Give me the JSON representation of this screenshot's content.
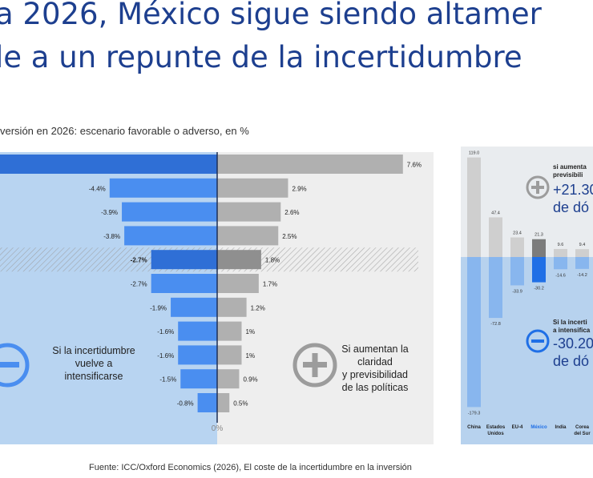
{
  "header": {
    "title_line1": "a 2026, México sigue siendo altamer",
    "title_line2": "le a un repunte de la incertidumbre",
    "subtitle": "versión en 2026: escenario favorable o adverso, en %"
  },
  "colors": {
    "adverse_bar": "#4a8ef0",
    "favorable_bar": "#b0b0b0",
    "left_panel": "#b8d4f1",
    "right_panel": "#eeeeee",
    "title": "#1d3f8f"
  },
  "chart_data": [
    {
      "type": "bar",
      "orientation": "horizontal-diverging",
      "series": [
        {
          "name": "Si la incertidumbre vuelve a intensificarse",
          "values": [
            null,
            -4.4,
            -3.9,
            -3.8,
            -2.7,
            -2.7,
            -1.9,
            -1.6,
            -1.6,
            -1.5,
            -0.8
          ]
        },
        {
          "name": "Si aumentan la claridad y previsibilidad de las políticas",
          "values": [
            7.6,
            2.9,
            2.6,
            2.5,
            1.8,
            1.7,
            1.2,
            1,
            1,
            0.9,
            0.5
          ]
        }
      ],
      "neg_labels": [
        "",
        "-4.4%",
        "-3.9%",
        "-3.8%",
        "-2.7%",
        "-2.7%",
        "-1.9%",
        "-1.6%",
        "-1.6%",
        "-1.5%",
        "-0.8%"
      ],
      "pos_labels": [
        "7.6%",
        "2.9%",
        "2.6%",
        "2.5%",
        "1.8%",
        "1.7%",
        "1.2%",
        "1%",
        "1%",
        "0.9%",
        "0.5%"
      ],
      "highlight_index": 4,
      "zero_label": "0%",
      "adverse_text": [
        "Si la incertidumbre",
        "vuelve a",
        "intensificarse"
      ],
      "favorable_text": [
        "Si aumentan la",
        "claridad",
        "y previsibilidad",
        "de las políticas"
      ]
    },
    {
      "type": "bar",
      "categories": [
        "China",
        "Estados Unidos",
        "EU-4",
        "México",
        "India",
        "Corea del Sur"
      ],
      "series": [
        {
          "name": "si aumentan previsibili",
          "values": [
            119.0,
            47.4,
            23.4,
            21.3,
            9.6,
            9.4
          ]
        },
        {
          "name": "Si la incerti a intensifica",
          "values": [
            -179.3,
            -72.8,
            -33.9,
            -30.2,
            -14.6,
            -14.2
          ]
        }
      ],
      "pos_labels": [
        "119.0",
        "47.4",
        "23.4",
        "21.3",
        "9.6",
        "9.4"
      ],
      "neg_labels": [
        "-179.3",
        "-72.8",
        "-33.9",
        "-30.2",
        "-14.6",
        "-14.2"
      ],
      "highlight": "México",
      "up_small": [
        "si aumenta",
        "previsibili"
      ],
      "up_big": [
        "+21.30",
        "de dó"
      ],
      "down_small": [
        "Si la incerti",
        "a intensifica"
      ],
      "down_big": [
        "-30.20",
        "de dó"
      ]
    }
  ],
  "footer": {
    "source": "Fuente: ICC/Oxford Economics (2026), El coste de la incertidumbre en la inversión"
  }
}
